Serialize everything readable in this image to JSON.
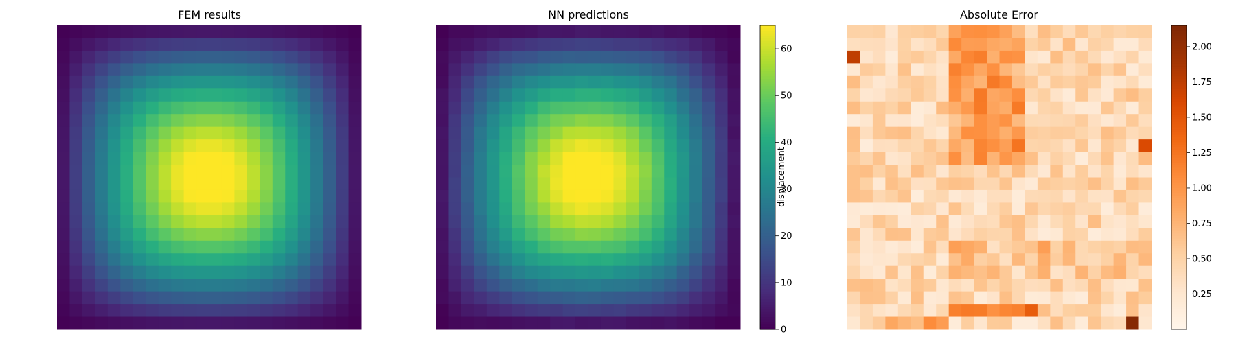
{
  "chart_data": [
    {
      "type": "heatmap",
      "title": "FEM results",
      "grid_size": [
        24,
        24
      ],
      "pattern": "centered bump: low (~0-5) at corners, peak ~65 at center slightly right of middle",
      "vmin": 0,
      "vmax": 65,
      "peak_value": 65,
      "colormap": "viridis",
      "axes_visible": false
    },
    {
      "type": "heatmap",
      "title": "NN predictions",
      "grid_size": [
        24,
        24
      ],
      "vmin": 0,
      "vmax": 65,
      "peak_value": 65,
      "colormap": "viridis",
      "axes_visible": false,
      "colorbar": {
        "label": "displacement",
        "ticks": [
          "0",
          "10",
          "20",
          "30",
          "40",
          "50",
          "60"
        ],
        "tick_values": [
          0,
          10,
          20,
          30,
          40,
          50,
          60
        ]
      }
    },
    {
      "type": "heatmap",
      "title": "Absolute Error",
      "grid_size": [
        24,
        24
      ],
      "vmin": 0,
      "vmax": 2.15,
      "colormap": "Oranges",
      "axes_visible": false,
      "colorbar": {
        "label": "",
        "ticks": [
          "0.25",
          "0.50",
          "0.75",
          "1.00",
          "1.25",
          "1.50",
          "1.75",
          "2.00"
        ],
        "tick_values": [
          0.25,
          0.5,
          0.75,
          1.0,
          1.25,
          1.5,
          1.75,
          2.0
        ]
      }
    }
  ]
}
